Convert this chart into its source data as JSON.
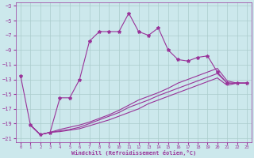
{
  "xlabel": "Windchill (Refroidissement éolien,°C)",
  "xlim": [
    -0.5,
    23.5
  ],
  "ylim": [
    -21.5,
    -2.5
  ],
  "yticks": [
    -3,
    -5,
    -7,
    -9,
    -11,
    -13,
    -15,
    -17,
    -19,
    -21
  ],
  "xticks": [
    0,
    1,
    2,
    3,
    4,
    5,
    6,
    7,
    8,
    9,
    10,
    11,
    12,
    13,
    14,
    15,
    16,
    17,
    18,
    19,
    20,
    21,
    22,
    23
  ],
  "bg_color": "#cce8ec",
  "line_color": "#993399",
  "grid_color": "#aacccc",
  "lines": [
    {
      "x": [
        0,
        1,
        2,
        3,
        4,
        5,
        6,
        7,
        8,
        9,
        10,
        11,
        12,
        13,
        14,
        15,
        16,
        17,
        18,
        19,
        20,
        21,
        22,
        23
      ],
      "y": [
        -12.5,
        -19.2,
        -20.5,
        -20.2,
        -15.5,
        -15.5,
        -13.0,
        -7.8,
        -6.5,
        -6.5,
        -6.5,
        -4.0,
        -6.5,
        -7.0,
        -6.0,
        -9.0,
        -10.3,
        -10.5,
        -10.0,
        -9.8,
        -12.0,
        -13.5,
        -13.5,
        -13.5
      ],
      "marker": true
    },
    {
      "x": [
        1,
        2,
        3,
        4,
        5,
        6,
        7,
        8,
        9,
        10,
        11,
        12,
        13,
        14,
        15,
        16,
        17,
        18,
        19,
        20,
        21,
        22,
        23
      ],
      "y": [
        -19.2,
        -20.5,
        -20.2,
        -19.8,
        -19.5,
        -19.2,
        -18.8,
        -18.3,
        -17.8,
        -17.2,
        -16.5,
        -15.8,
        -15.3,
        -14.8,
        -14.2,
        -13.5,
        -13.0,
        -12.5,
        -12.0,
        -11.5,
        -13.2,
        -13.5,
        -13.5
      ],
      "marker": false
    },
    {
      "x": [
        1,
        2,
        3,
        4,
        5,
        6,
        7,
        8,
        9,
        10,
        11,
        12,
        13,
        14,
        15,
        16,
        17,
        18,
        19,
        20,
        21,
        22,
        23
      ],
      "y": [
        -19.2,
        -20.5,
        -20.2,
        -20.0,
        -19.8,
        -19.5,
        -19.0,
        -18.5,
        -18.0,
        -17.5,
        -16.8,
        -16.3,
        -15.8,
        -15.2,
        -14.7,
        -14.2,
        -13.7,
        -13.2,
        -12.7,
        -12.2,
        -13.5,
        -13.5,
        -13.5
      ],
      "marker": false
    },
    {
      "x": [
        1,
        2,
        3,
        4,
        5,
        6,
        7,
        8,
        9,
        10,
        11,
        12,
        13,
        14,
        15,
        16,
        17,
        18,
        19,
        20,
        21,
        22,
        23
      ],
      "y": [
        -19.2,
        -20.5,
        -20.2,
        -20.1,
        -19.9,
        -19.7,
        -19.3,
        -18.9,
        -18.5,
        -18.0,
        -17.5,
        -17.0,
        -16.3,
        -15.8,
        -15.3,
        -14.8,
        -14.3,
        -13.8,
        -13.3,
        -12.8,
        -13.8,
        -13.5,
        -13.5
      ],
      "marker": false
    }
  ]
}
